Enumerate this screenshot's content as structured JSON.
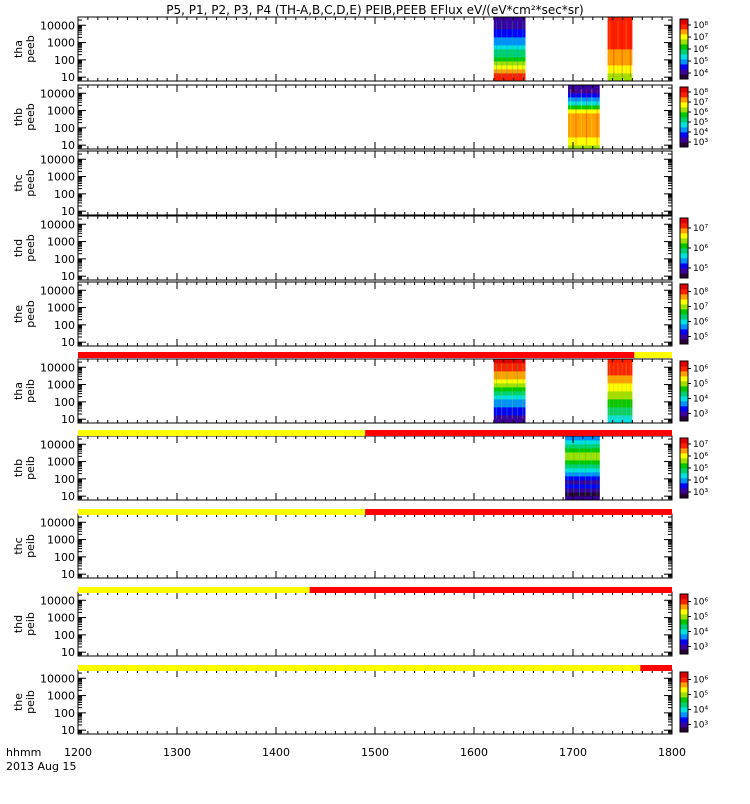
{
  "title": "P5, P1, P2, P3, P4 (TH-A,B,C,D,E) PEIB,PEEB EFlux eV/(eV*cm²*sec*sr)",
  "time_label": "hhmm",
  "date_label": "2013 Aug 15",
  "colors": {
    "bar_red": "#ff0000",
    "bar_yellow": "#ffff00",
    "spectrogram_scale": [
      "#2a0038",
      "#3a00a0",
      "#0000ff",
      "#0090ff",
      "#00e0e0",
      "#00d070",
      "#00c800",
      "#a0e000",
      "#ffff00",
      "#ffa000",
      "#ff2000",
      "#e00000"
    ]
  },
  "chart_data": [
    {
      "type": "heatmap",
      "probe": "tha",
      "instrument": "peeb",
      "ylabel": [
        "tha",
        "peeb"
      ],
      "yscale": "log",
      "ylim": [
        6,
        30000
      ],
      "yticks": [
        "10",
        "100",
        "1000",
        "10000"
      ],
      "xlim": [
        1200,
        1800
      ],
      "colorbar": {
        "ticks": [
          "10⁴",
          "10⁵",
          "10⁶",
          "10⁷",
          "10⁸"
        ]
      },
      "data_blocks": [
        {
          "x_start": 1620,
          "x_end": 1652,
          "profile": "tha_peeb_1"
        },
        {
          "x_start": 1735,
          "x_end": 1760,
          "profile": "tha_peeb_2"
        }
      ]
    },
    {
      "type": "heatmap",
      "probe": "thb",
      "instrument": "peeb",
      "ylabel": [
        "thb",
        "peeb"
      ],
      "yscale": "log",
      "ylim": [
        6,
        30000
      ],
      "yticks": [
        "10",
        "100",
        "1000",
        "10000"
      ],
      "xlim": [
        1200,
        1800
      ],
      "colorbar": {
        "ticks": [
          "10³",
          "10⁴",
          "10⁵",
          "10⁶",
          "10⁷",
          "10⁸"
        ]
      },
      "data_blocks": [
        {
          "x_start": 1695,
          "x_end": 1727,
          "profile": "thb_peeb"
        }
      ]
    },
    {
      "type": "heatmap",
      "probe": "thc",
      "instrument": "peeb",
      "ylabel": [
        "thc",
        "peeb"
      ],
      "yscale": "log",
      "ylim": [
        6,
        30000
      ],
      "yticks": [
        "10",
        "100",
        "1000",
        "10000"
      ],
      "xlim": [
        1200,
        1800
      ],
      "data_blocks": []
    },
    {
      "type": "heatmap",
      "probe": "thd",
      "instrument": "peeb",
      "ylabel": [
        "thd",
        "peeb"
      ],
      "yscale": "log",
      "ylim": [
        6,
        30000
      ],
      "yticks": [
        "10",
        "100",
        "1000",
        "10000"
      ],
      "xlim": [
        1200,
        1800
      ],
      "colorbar": {
        "ticks": [
          "10⁵",
          "10⁶",
          "10⁷"
        ]
      },
      "data_blocks": []
    },
    {
      "type": "heatmap",
      "probe": "the",
      "instrument": "peeb",
      "ylabel": [
        "the",
        "peeb"
      ],
      "yscale": "log",
      "ylim": [
        6,
        30000
      ],
      "yticks": [
        "10",
        "100",
        "1000",
        "10000"
      ],
      "xlim": [
        1200,
        1800
      ],
      "colorbar": {
        "ticks": [
          "10⁵",
          "10⁶",
          "10⁷",
          "10⁸"
        ]
      },
      "data_blocks": []
    },
    {
      "type": "heatmap",
      "probe": "tha",
      "instrument": "peib",
      "ylabel": [
        "tha",
        "peib"
      ],
      "yscale": "log",
      "ylim": [
        6,
        30000
      ],
      "yticks": [
        "10",
        "100",
        "1000",
        "10000"
      ],
      "xlim": [
        1200,
        1800
      ],
      "colorbar": {
        "ticks": [
          "10³",
          "10⁴",
          "10⁵",
          "10⁶"
        ]
      },
      "data_blocks": [
        {
          "x_start": 1620,
          "x_end": 1652,
          "profile": "tha_peib_1"
        },
        {
          "x_start": 1735,
          "x_end": 1760,
          "profile": "tha_peib_2"
        }
      ]
    },
    {
      "type": "heatmap",
      "probe": "thb",
      "instrument": "peib",
      "ylabel": [
        "thb",
        "peib"
      ],
      "yscale": "log",
      "ylim": [
        6,
        30000
      ],
      "yticks": [
        "10",
        "100",
        "1000",
        "10000"
      ],
      "xlim": [
        1200,
        1800
      ],
      "colorbar": {
        "ticks": [
          "10³",
          "10⁴",
          "10⁵",
          "10⁶",
          "10⁷"
        ]
      },
      "data_blocks": [
        {
          "x_start": 1692,
          "x_end": 1727,
          "profile": "thb_peib"
        }
      ]
    },
    {
      "type": "heatmap",
      "probe": "thc",
      "instrument": "peib",
      "ylabel": [
        "thc",
        "peib"
      ],
      "yscale": "log",
      "ylim": [
        6,
        30000
      ],
      "yticks": [
        "10",
        "100",
        "1000",
        "10000"
      ],
      "xlim": [
        1200,
        1800
      ],
      "data_blocks": []
    },
    {
      "type": "heatmap",
      "probe": "thd",
      "instrument": "peib",
      "ylabel": [
        "thd",
        "peib"
      ],
      "yscale": "log",
      "ylim": [
        6,
        30000
      ],
      "yticks": [
        "10",
        "100",
        "1000",
        "10000"
      ],
      "xlim": [
        1200,
        1800
      ],
      "colorbar": {
        "ticks": [
          "10³",
          "10⁴",
          "10⁵",
          "10⁶"
        ]
      },
      "data_blocks": []
    },
    {
      "type": "heatmap",
      "probe": "the",
      "instrument": "peib",
      "ylabel": [
        "the",
        "peib"
      ],
      "yscale": "log",
      "ylim": [
        6,
        30000
      ],
      "yticks": [
        "10",
        "100",
        "1000",
        "10000"
      ],
      "xlim": [
        1200,
        1800
      ],
      "colorbar": {
        "ticks": [
          "10³",
          "10⁴",
          "10⁵",
          "10⁶"
        ]
      },
      "data_blocks": []
    }
  ],
  "mode_bars": [
    {
      "segments": [
        {
          "x_start": 1200,
          "x_end": 1762,
          "color": "red"
        },
        {
          "x_start": 1762,
          "x_end": 1800,
          "color": "yellow"
        }
      ]
    },
    {
      "segments": [
        {
          "x_start": 1200,
          "x_end": 1490,
          "color": "yellow"
        },
        {
          "x_start": 1490,
          "x_end": 1800,
          "color": "red"
        }
      ]
    },
    {
      "segments": [
        {
          "x_start": 1200,
          "x_end": 1490,
          "color": "yellow"
        },
        {
          "x_start": 1490,
          "x_end": 1800,
          "color": "red"
        }
      ]
    },
    {
      "segments": [
        {
          "x_start": 1200,
          "x_end": 1434,
          "color": "yellow"
        },
        {
          "x_start": 1434,
          "x_end": 1800,
          "color": "red"
        }
      ]
    },
    {
      "segments": [
        {
          "x_start": 1200,
          "x_end": 1768,
          "color": "yellow"
        },
        {
          "x_start": 1768,
          "x_end": 1800,
          "color": "red"
        }
      ]
    }
  ],
  "x_axis": {
    "ticks": [
      1200,
      1300,
      1400,
      1500,
      1600,
      1700,
      1800
    ],
    "labels": [
      "1200",
      "1300",
      "1400",
      "1500",
      "1600",
      "1700",
      "1800"
    ]
  }
}
